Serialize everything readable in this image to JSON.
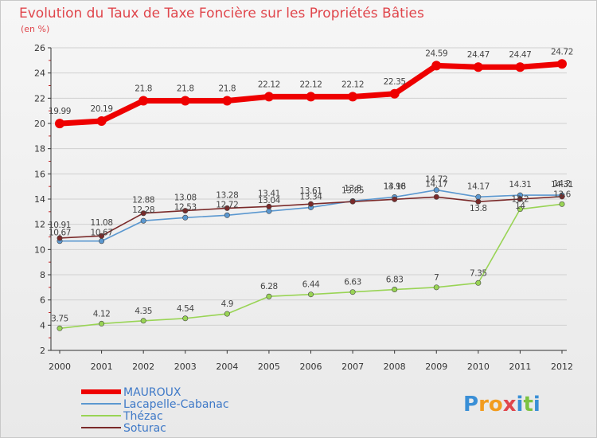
{
  "colors": {
    "title": "#e0464c",
    "legend_text": "#3d78c7",
    "grid": "#d0d0d0",
    "axis": "#333333"
  },
  "chart_data": {
    "type": "line",
    "title": "Evolution du Taux de Taxe Foncière sur les Propriétés Bâties",
    "subtitle": "(en %)",
    "x": [
      "2000",
      "2001",
      "2002",
      "2003",
      "2004",
      "2005",
      "2006",
      "2007",
      "2008",
      "2009",
      "2010",
      "2011",
      "2012"
    ],
    "ylim": [
      2,
      26
    ],
    "yticks": [
      2,
      4,
      6,
      8,
      10,
      12,
      14,
      16,
      18,
      20,
      22,
      24,
      26
    ],
    "grid": true,
    "series": [
      {
        "name": "MAUROUX",
        "color": "#ee0000",
        "values": [
          19.99,
          20.19,
          21.8,
          21.8,
          21.8,
          22.12,
          22.12,
          22.12,
          22.35,
          24.59,
          24.47,
          24.47,
          24.72
        ],
        "labels": [
          "19.99",
          "20.19",
          "21.8",
          "21.8",
          "21.8",
          "22.12",
          "22.12",
          "22.12",
          "22.35",
          "24.59",
          "24.47",
          "24.47",
          "24.72"
        ]
      },
      {
        "name": "Lacapelle-Cabanac",
        "color": "#5b98d0",
        "values": [
          10.67,
          10.67,
          12.28,
          12.53,
          12.72,
          13.04,
          13.34,
          13.85,
          14.16,
          14.72,
          14.17,
          14.31,
          14.31
        ],
        "labels": [
          "10.67",
          "10.67",
          "12.28",
          "12.53",
          "12.72",
          "13.04",
          "13.34",
          "13.85",
          "14.16",
          "14.72",
          "14.17",
          "14.31",
          "14.31"
        ]
      },
      {
        "name": "Thézac",
        "color": "#99d455",
        "values": [
          3.75,
          4.12,
          4.35,
          4.54,
          4.9,
          6.28,
          6.44,
          6.63,
          6.83,
          7,
          7.35,
          13.2,
          13.6
        ],
        "labels": [
          "3.75",
          "4.12",
          "4.35",
          "4.54",
          "4.9",
          "6.28",
          "6.44",
          "6.63",
          "6.83",
          "7",
          "7.35",
          "13.2",
          "13.6"
        ]
      },
      {
        "name": "Soturac",
        "color": "#7a2a2a",
        "values": [
          10.91,
          11.08,
          12.88,
          13.08,
          13.28,
          13.41,
          13.61,
          13.8,
          13.98,
          14.17,
          13.8,
          14,
          14.2
        ],
        "labels": [
          "10.91",
          "11.08",
          "12.88",
          "13.08",
          "13.28",
          "13.41",
          "13.61",
          "13.8",
          "13.98",
          "14.17",
          "13.8",
          "14",
          "14.2"
        ]
      }
    ]
  },
  "legend": [
    "MAUROUX",
    "Lacapelle-Cabanac",
    "Thézac",
    "Soturac"
  ],
  "logo": {
    "letters": [
      "P",
      "r",
      "o",
      "x",
      "i",
      "t",
      "i"
    ],
    "colors": [
      "#3a8fd6",
      "#f29c1f",
      "#f29c1f",
      "#e0464c",
      "#3a8fd6",
      "#7cc242",
      "#3a8fd6"
    ]
  }
}
